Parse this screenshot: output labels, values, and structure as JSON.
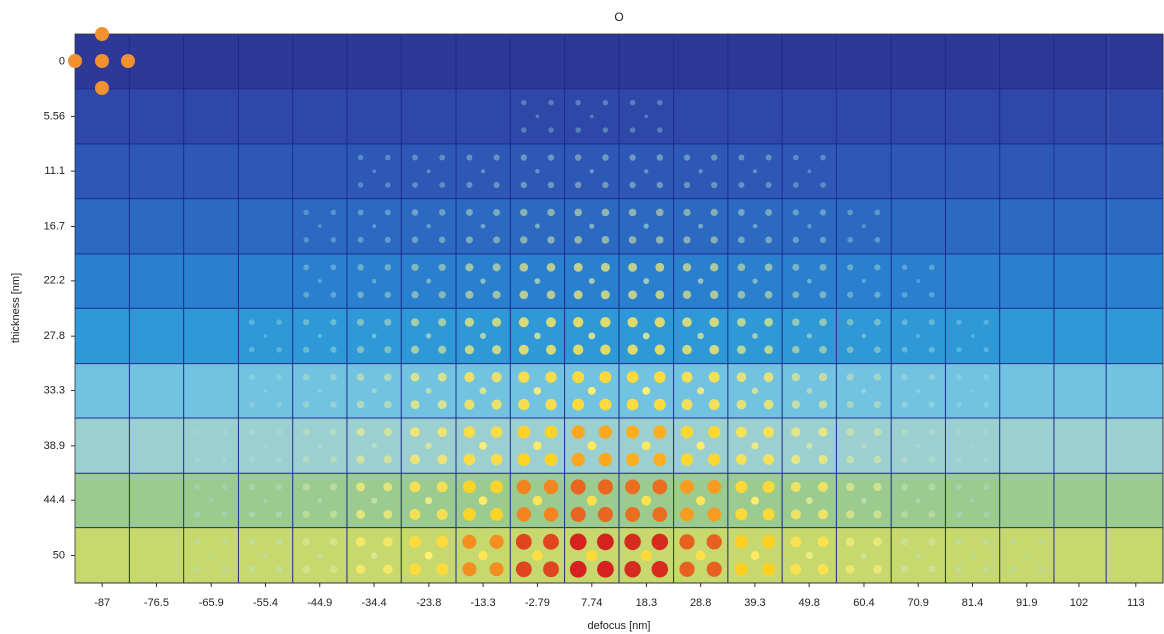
{
  "chart_data": {
    "type": "image-grid",
    "title": "O",
    "x_label": "defocus [nm]",
    "y_label": "thickness [nm]",
    "xlim": [
      -92.26,
      118.26
    ],
    "xticks": [
      -87,
      -76.5,
      -65.9,
      -55.4,
      -44.9,
      -34.4,
      -23.8,
      -13.3,
      -2.79,
      7.74,
      18.3,
      28.8,
      39.3,
      49.8,
      60.4,
      70.9,
      81.4,
      91.9,
      102,
      113
    ],
    "ylim": [
      52.78,
      -2.78
    ],
    "yticks": [
      0,
      5.56,
      11.1,
      16.7,
      22.2,
      27.8,
      33.3,
      38.9,
      44.4,
      50
    ]
  }
}
